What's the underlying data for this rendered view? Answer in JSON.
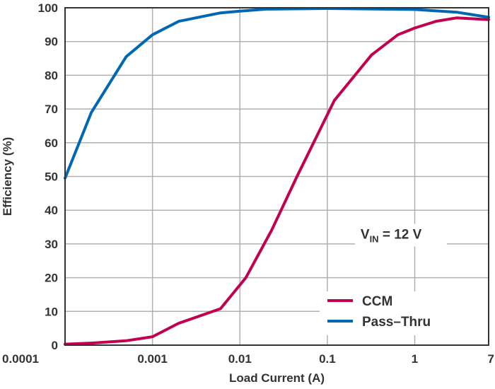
{
  "chart_data": {
    "type": "line",
    "title": "",
    "xlabel": "Load Current (A)",
    "ylabel": "Efficiency (%)",
    "xscale": "log",
    "xlim": [
      0.0001,
      7
    ],
    "ylim": [
      0,
      100
    ],
    "grid": true,
    "xticks": [
      0.0001,
      0.001,
      0.01,
      0.1,
      1,
      7
    ],
    "xtick_labels": [
      "0.0001",
      "0.001",
      "0.01",
      "0.1",
      "1",
      "7"
    ],
    "yticks": [
      0,
      10,
      20,
      30,
      40,
      50,
      60,
      70,
      80,
      90,
      100
    ],
    "ytick_labels": [
      "0",
      "10",
      "20",
      "30",
      "40",
      "50",
      "60",
      "70",
      "80",
      "90",
      "100"
    ],
    "annotation": {
      "main": "V",
      "sub": "IN",
      "rest": " = 12 V",
      "x": 0.3,
      "y": 33
    },
    "legend_position": "bottom-right",
    "series": [
      {
        "name": "CCM",
        "color": "#c2004f",
        "x": [
          0.0001,
          0.0002,
          0.0005,
          0.001,
          0.002,
          0.006,
          0.0117,
          0.023,
          0.045,
          0.12,
          0.32,
          0.64,
          1,
          1.75,
          3,
          7
        ],
        "y": [
          0.3,
          0.6,
          1.3,
          2.5,
          6.5,
          10.8,
          20,
          34,
          50,
          72.5,
          86,
          92,
          94,
          96,
          97,
          96.5
        ]
      },
      {
        "name": "Pass–Thru",
        "color": "#0068b3",
        "x": [
          0.0001,
          0.0002,
          0.0005,
          0.001,
          0.002,
          0.006,
          0.01,
          0.02,
          0.1,
          1,
          3,
          7
        ],
        "y": [
          49.5,
          69,
          85.5,
          92,
          96,
          98.5,
          99,
          99.6,
          99.8,
          99.5,
          98.7,
          97.2
        ]
      }
    ]
  }
}
